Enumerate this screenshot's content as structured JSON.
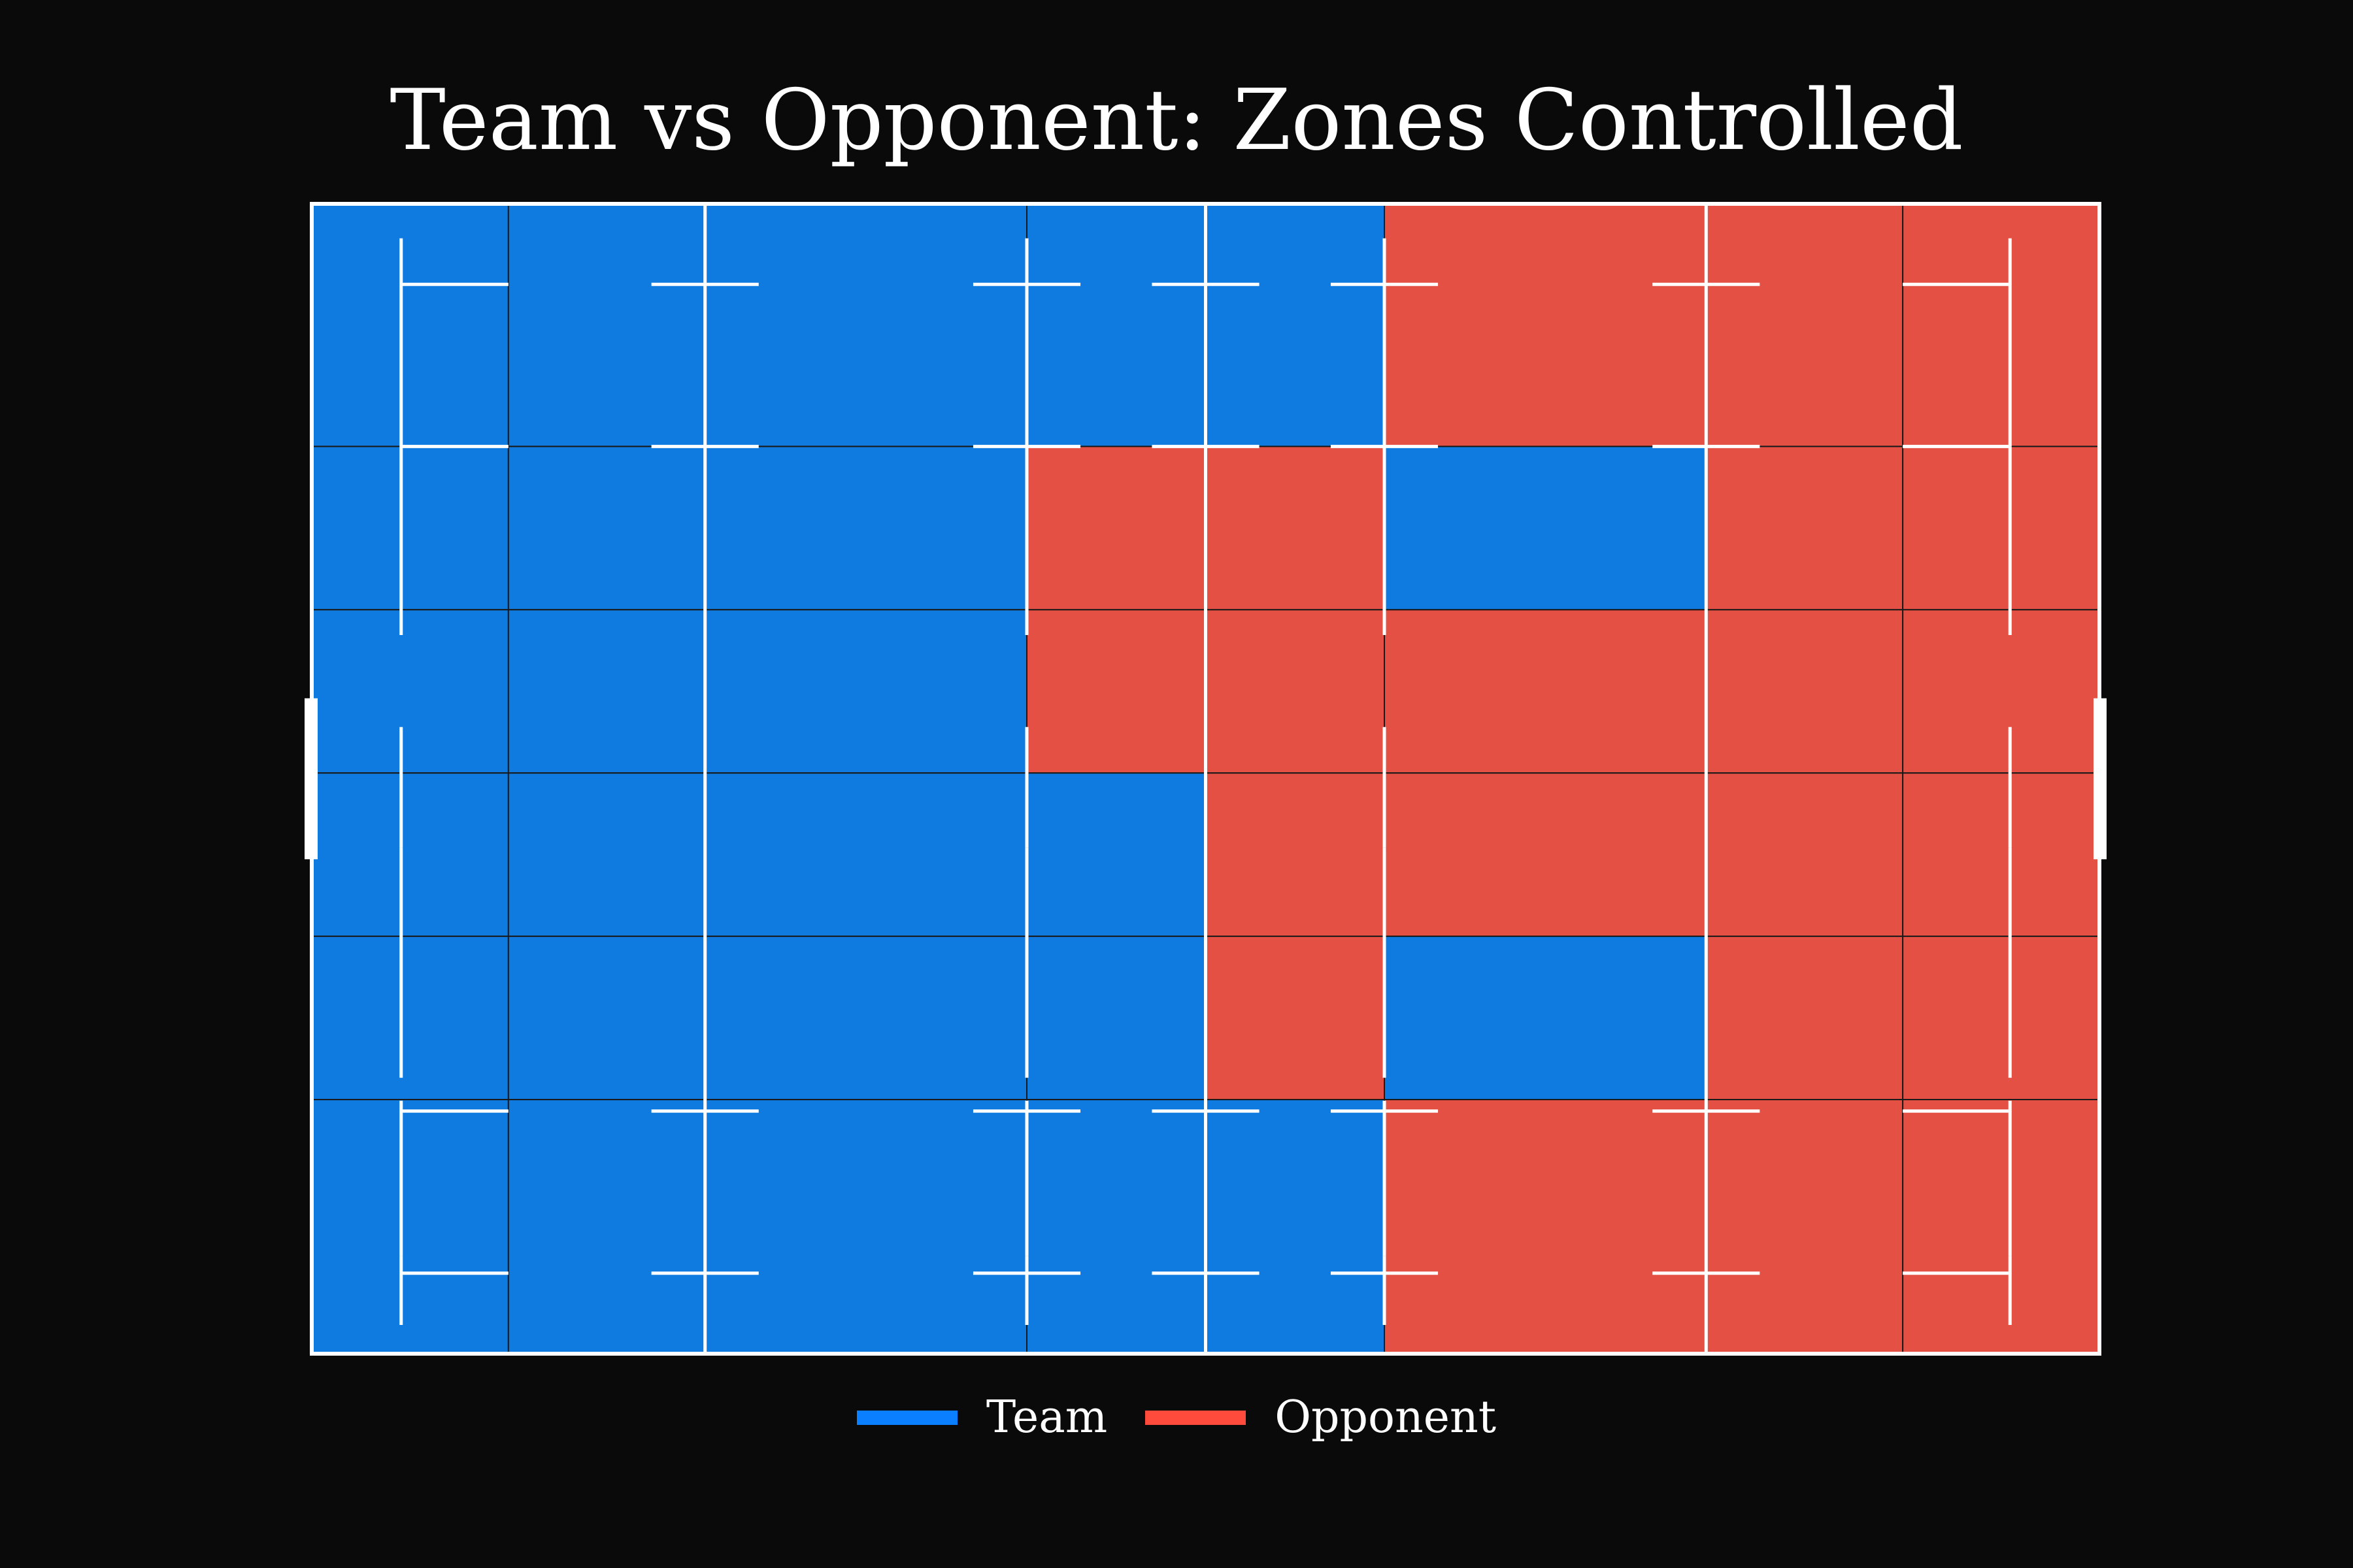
{
  "chart_data": {
    "type": "heatmap",
    "title": "Team vs Opponent: Zones Controlled",
    "colors": {
      "Team": "#0f7be0",
      "Opponent": "#e55045",
      "background": "#0a0a0a",
      "lines": "#ffffff"
    },
    "legend_position": "bottom-center",
    "legend": [
      {
        "name": "Team",
        "color": "#0a7fff"
      },
      {
        "name": "Opponent",
        "color": "#ff4b3c"
      }
    ],
    "x_zone_edges": [
      0,
      11,
      22,
      40,
      50,
      60,
      78,
      89,
      100
    ],
    "y_zone_edges": [
      0,
      21.1,
      35.3,
      49.5,
      63.7,
      77.9,
      100
    ],
    "rows": [
      [
        "Team",
        "Team",
        "Team",
        "Team",
        "Team",
        "Opponent",
        "Opponent",
        "Opponent"
      ],
      [
        "Team",
        "Team",
        "Team",
        "Opponent",
        "Opponent",
        "Team",
        "Opponent",
        "Opponent"
      ],
      [
        "Team",
        "Team",
        "Team",
        "Opponent",
        "Opponent",
        "Opponent",
        "Opponent",
        "Opponent"
      ],
      [
        "Team",
        "Team",
        "Team",
        "Team",
        "Opponent",
        "Opponent",
        "Opponent",
        "Opponent"
      ],
      [
        "Team",
        "Team",
        "Team",
        "Team",
        "Opponent",
        "Team",
        "Opponent",
        "Opponent"
      ],
      [
        "Team",
        "Team",
        "Team",
        "Team",
        "Team",
        "Opponent",
        "Opponent",
        "Opponent"
      ]
    ]
  }
}
